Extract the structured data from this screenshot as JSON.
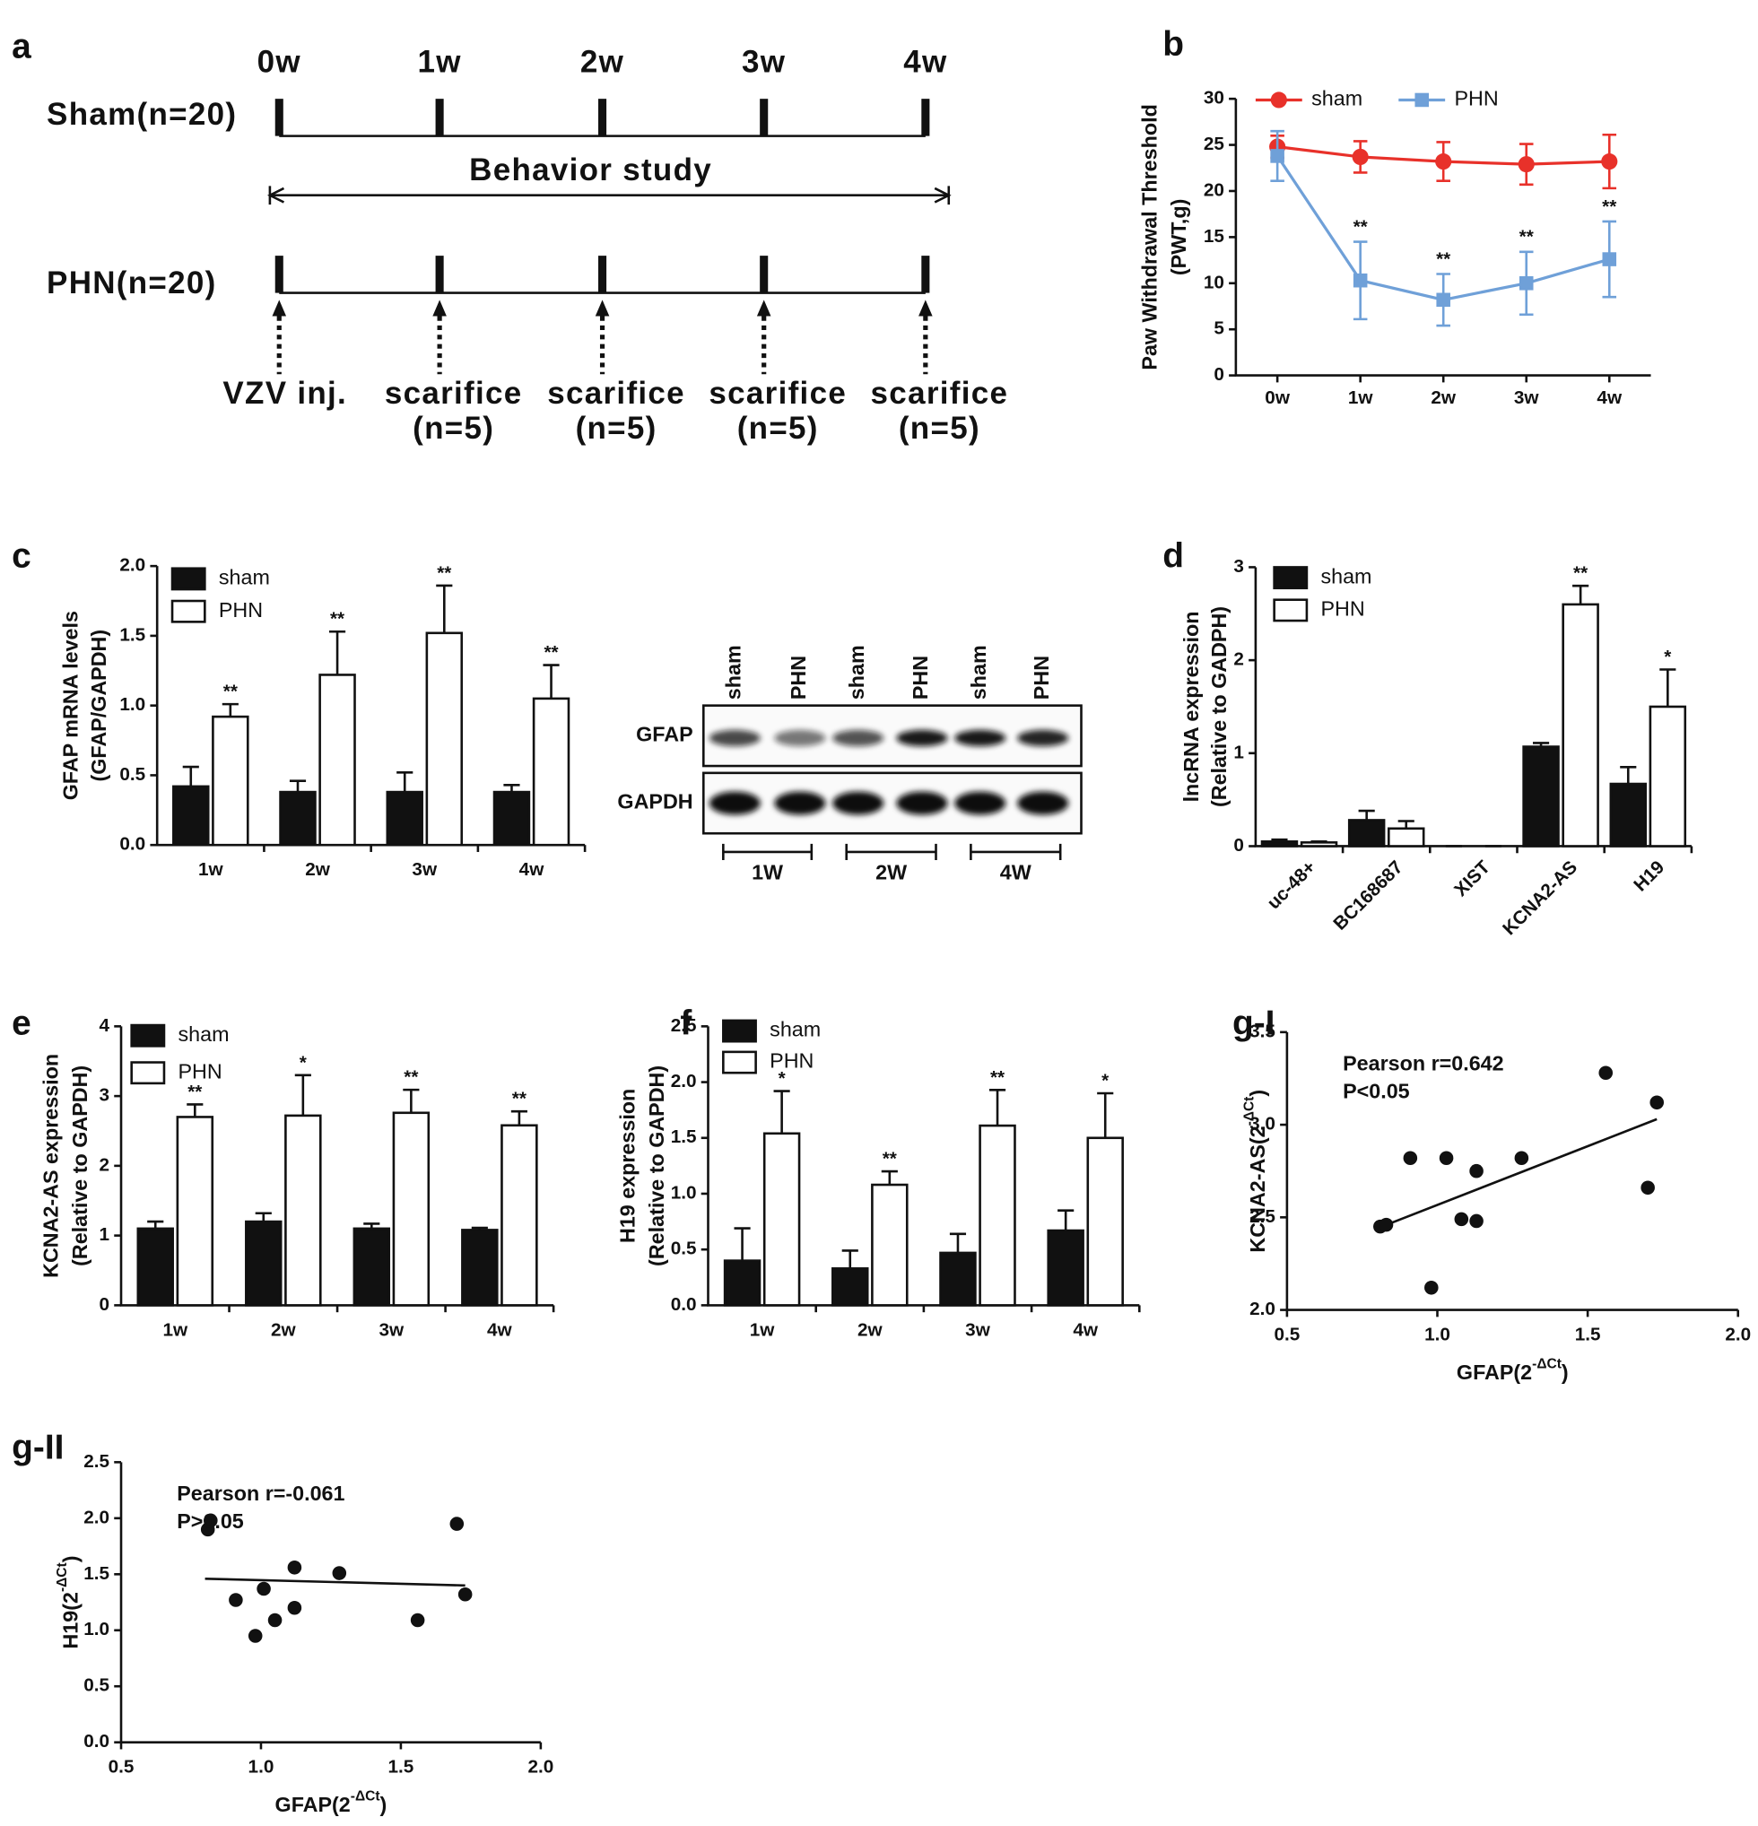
{
  "diagram": {
    "panel": "a",
    "timepoints": [
      "0w",
      "1w",
      "2w",
      "3w",
      "4w"
    ],
    "groups": [
      "Sham(n=20)",
      "PHN(n=20)"
    ],
    "span_label": "Behavior study",
    "events": [
      [
        "VZV inj."
      ],
      [
        "scarifice",
        "(n=5)"
      ],
      [
        "scarifice",
        "(n=5)"
      ],
      [
        "scarifice",
        "(n=5)"
      ],
      [
        "scarifice",
        "(n=5)"
      ]
    ]
  },
  "blot": {
    "lanes": [
      "sham",
      "PHN",
      "sham",
      "PHN",
      "sham",
      "PHN"
    ],
    "rows": [
      "GFAP",
      "GAPDH"
    ],
    "groups": [
      "1W",
      "2W",
      "4W"
    ]
  },
  "chart_data": [
    {
      "type": "line",
      "panel": "b",
      "ylabel": [
        "Paw Withdrawal Threshold",
        "(PWT,g)"
      ],
      "categories": [
        "0w",
        "1w",
        "2w",
        "3w",
        "4w"
      ],
      "ylim": [
        0,
        30
      ],
      "yticks": [
        0,
        5,
        10,
        15,
        20,
        25,
        30
      ],
      "series": [
        {
          "name": "sham",
          "color": "#e8312a",
          "marker": "circle",
          "values": [
            24.8,
            23.7,
            23.2,
            22.9,
            23.2
          ],
          "errors": [
            1.2,
            1.7,
            2.1,
            2.2,
            2.9
          ],
          "marks": [
            null,
            null,
            null,
            null,
            null
          ]
        },
        {
          "name": "PHN",
          "color": "#6fa0d8",
          "marker": "square",
          "values": [
            23.8,
            10.3,
            8.2,
            10.0,
            12.6
          ],
          "errors": [
            2.7,
            4.2,
            2.8,
            3.4,
            4.1
          ],
          "marks": [
            null,
            "**",
            "**",
            "**",
            "**"
          ]
        }
      ]
    },
    {
      "type": "bar",
      "panel": "c",
      "ylabel": [
        "GFAP mRNA levels",
        "(GFAP/GAPDH)"
      ],
      "categories": [
        "1w",
        "2w",
        "3w",
        "4w"
      ],
      "ylim": [
        0,
        2
      ],
      "yticks": [
        {
          "value": 0,
          "label": "0.0"
        },
        {
          "value": 0.5,
          "label": "0.5"
        },
        {
          "value": 1,
          "label": "1.0"
        },
        {
          "value": 1.5,
          "label": "1.5"
        },
        {
          "value": 2,
          "label": "2.0"
        }
      ],
      "series": [
        {
          "name": "sham",
          "color": "#111111",
          "values": [
            0.42,
            0.38,
            0.38,
            0.38
          ],
          "errors": [
            0.14,
            0.08,
            0.14,
            0.05
          ],
          "marks": [
            null,
            null,
            null,
            null
          ]
        },
        {
          "name": "PHN",
          "color": "#ffffff",
          "values": [
            0.92,
            1.22,
            1.52,
            1.05
          ],
          "errors": [
            0.09,
            0.31,
            0.34,
            0.24
          ],
          "marks": [
            "**",
            "**",
            "**",
            "**"
          ]
        }
      ]
    },
    {
      "type": "bar",
      "panel": "d",
      "ylabel": [
        "lncRNA expression",
        "(Relative to GADPH)"
      ],
      "categories": [
        "uc-48+",
        "BC168687",
        "XIST",
        "KCNA2-AS",
        "H19"
      ],
      "rotate_labels": true,
      "ylim": [
        0,
        3
      ],
      "yticks": [
        0,
        1,
        2,
        3
      ],
      "series": [
        {
          "name": "sham",
          "color": "#111111",
          "values": [
            0.05,
            0.28,
            0,
            1.07,
            0.67
          ],
          "errors": [
            0.02,
            0.1,
            0,
            0.04,
            0.18
          ],
          "marks": [
            null,
            null,
            null,
            null,
            null
          ]
        },
        {
          "name": "PHN",
          "color": "#ffffff",
          "values": [
            0.04,
            0.19,
            0,
            2.6,
            1.5
          ],
          "errors": [
            0.01,
            0.08,
            0,
            0.2,
            0.4
          ],
          "marks": [
            null,
            null,
            null,
            "**",
            "*"
          ]
        }
      ]
    },
    {
      "type": "bar",
      "panel": "e",
      "ylabel": [
        "KCNA2-AS expression",
        "(Relative to GAPDH)"
      ],
      "categories": [
        "1w",
        "2w",
        "3w",
        "4w"
      ],
      "ylim": [
        0,
        4
      ],
      "yticks": [
        0,
        1,
        2,
        3,
        4
      ],
      "series": [
        {
          "name": "sham",
          "color": "#111111",
          "values": [
            1.1,
            1.2,
            1.1,
            1.08
          ],
          "errors": [
            0.1,
            0.12,
            0.07,
            0.03
          ],
          "marks": [
            null,
            null,
            null,
            null
          ]
        },
        {
          "name": "PHN",
          "color": "#ffffff",
          "values": [
            2.7,
            2.72,
            2.76,
            2.58
          ],
          "errors": [
            0.18,
            0.58,
            0.33,
            0.2
          ],
          "marks": [
            "**",
            "*",
            "**",
            "**"
          ]
        }
      ]
    },
    {
      "type": "bar",
      "panel": "f",
      "ylabel": [
        "H19 expression",
        "(Relative to GAPDH)"
      ],
      "categories": [
        "1w",
        "2w",
        "3w",
        "4w"
      ],
      "ylim": [
        0,
        2.5
      ],
      "yticks": [
        {
          "value": 0,
          "label": "0.0"
        },
        {
          "value": 0.5,
          "label": "0.5"
        },
        {
          "value": 1,
          "label": "1.0"
        },
        {
          "value": 1.5,
          "label": "1.5"
        },
        {
          "value": 2,
          "label": "2.0"
        },
        {
          "value": 2.5,
          "label": "2.5"
        }
      ],
      "series": [
        {
          "name": "sham",
          "color": "#111111",
          "values": [
            0.4,
            0.33,
            0.47,
            0.67
          ],
          "errors": [
            0.29,
            0.16,
            0.17,
            0.18
          ],
          "marks": [
            null,
            null,
            null,
            null
          ]
        },
        {
          "name": "PHN",
          "color": "#ffffff",
          "values": [
            1.54,
            1.08,
            1.61,
            1.5
          ],
          "errors": [
            0.38,
            0.12,
            0.32,
            0.4
          ],
          "marks": [
            "*",
            "**",
            "**",
            "*"
          ]
        }
      ]
    },
    {
      "type": "scatter",
      "panel": "g-I",
      "xlabel": [
        "GFAP(2",
        "-ΔCt",
        ")"
      ],
      "ylabel": [
        "KCNA2-AS(2",
        "-ΔCt",
        ")"
      ],
      "annotations": [
        "Pearson r=0.642",
        "P<0.05"
      ],
      "xlim": [
        0.5,
        2.0
      ],
      "xticks": [
        {
          "value": 0.5,
          "label": "0.5"
        },
        {
          "value": 1,
          "label": "1.0"
        },
        {
          "value": 1.5,
          "label": "1.5"
        },
        {
          "value": 2,
          "label": "2.0"
        }
      ],
      "ylim": [
        2.0,
        3.5
      ],
      "yticks": [
        {
          "value": 2,
          "label": "2.0"
        },
        {
          "value": 2.5,
          "label": "2.5"
        },
        {
          "value": 3,
          "label": "3.0"
        },
        {
          "value": 3.5,
          "label": "3.5"
        }
      ],
      "color": "#111111",
      "x": [
        0.81,
        0.83,
        0.91,
        1.03,
        1.08,
        1.13,
        1.13,
        1.28,
        0.98,
        1.56,
        1.73,
        1.7
      ],
      "y": [
        2.45,
        2.46,
        2.82,
        2.82,
        2.49,
        2.75,
        2.48,
        2.82,
        2.12,
        3.28,
        3.12,
        2.66
      ],
      "fit": {
        "x": [
          0.8,
          1.73
        ],
        "y": [
          2.44,
          3.03
        ]
      }
    },
    {
      "type": "scatter",
      "panel": "g-II",
      "xlabel": [
        "GFAP(2",
        "-ΔCt",
        ")"
      ],
      "ylabel": [
        "H19(2",
        "-ΔCt",
        ")"
      ],
      "annotations": [
        "Pearson r=-0.061",
        "P>0.05"
      ],
      "xlim": [
        0.5,
        2.0
      ],
      "xticks": [
        {
          "value": 0.5,
          "label": "0.5"
        },
        {
          "value": 1,
          "label": "1.0"
        },
        {
          "value": 1.5,
          "label": "1.5"
        },
        {
          "value": 2,
          "label": "2.0"
        }
      ],
      "ylim": [
        0,
        2.5
      ],
      "yticks": [
        {
          "value": 0,
          "label": "0.0"
        },
        {
          "value": 0.5,
          "label": "0.5"
        },
        {
          "value": 1,
          "label": "1.0"
        },
        {
          "value": 1.5,
          "label": "1.5"
        },
        {
          "value": 2,
          "label": "2.0"
        },
        {
          "value": 2.5,
          "label": "2.5"
        }
      ],
      "color": "#111111",
      "x": [
        0.81,
        0.82,
        0.91,
        0.98,
        1.01,
        1.05,
        1.12,
        1.12,
        1.28,
        1.56,
        1.7,
        1.73
      ],
      "y": [
        1.9,
        1.98,
        1.27,
        0.95,
        1.37,
        1.09,
        1.56,
        1.2,
        1.51,
        1.09,
        1.95,
        1.32
      ],
      "fit": {
        "x": [
          0.8,
          1.73
        ],
        "y": [
          1.46,
          1.4
        ]
      }
    }
  ]
}
